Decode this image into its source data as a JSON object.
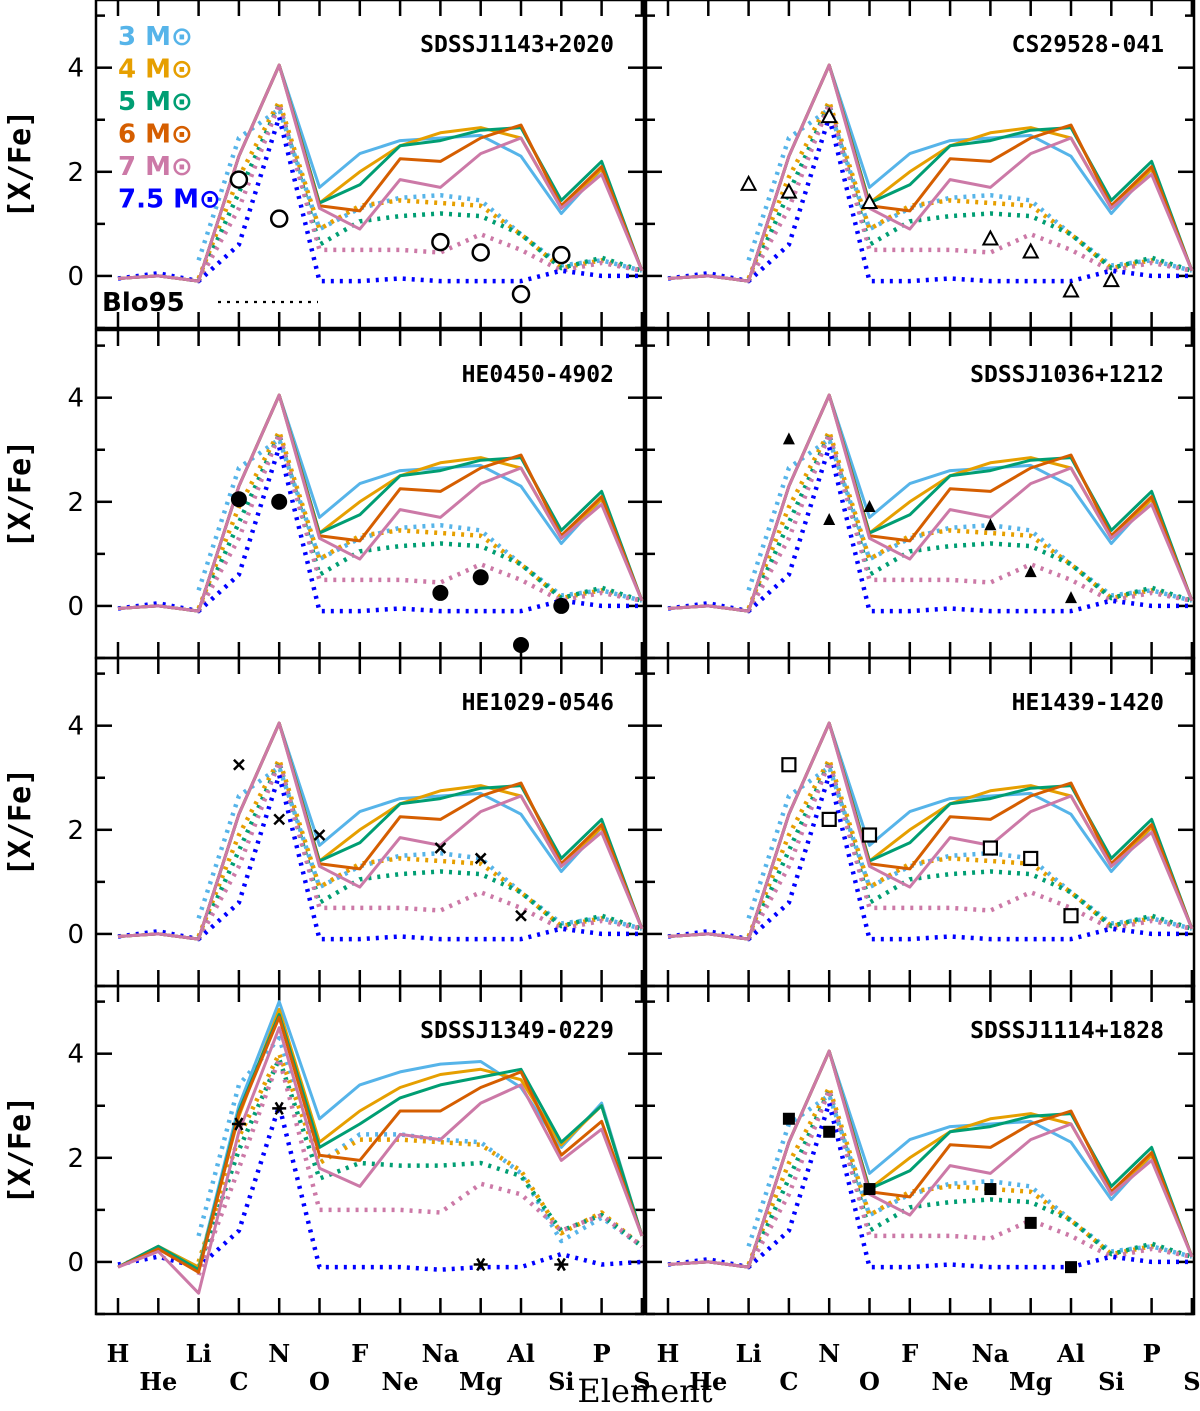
{
  "chart_data": {
    "type": "line",
    "xlabel": "Element",
    "ylabel": "[X/Fe]",
    "ylim": [
      -1.0,
      5.3
    ],
    "yticks": [
      "0",
      "2",
      "4"
    ],
    "elements": [
      "H",
      "He",
      "Li",
      "C",
      "N",
      "O",
      "F",
      "Ne",
      "Na",
      "Mg",
      "Al",
      "Si",
      "P",
      "S"
    ],
    "legend": {
      "entries": [
        {
          "label": "3 M⊙",
          "mass": "3",
          "color": "#56b4e9"
        },
        {
          "label": "4 M⊙",
          "mass": "4",
          "color": "#e69f00"
        },
        {
          "label": "5 M⊙",
          "mass": "5",
          "color": "#009e73"
        },
        {
          "label": "6 M⊙",
          "mass": "6",
          "color": "#d55e00"
        },
        {
          "label": "7 M⊙",
          "mass": "7",
          "color": "#cc79a7"
        },
        {
          "label": "7.5 M⊙",
          "mass": "7.5",
          "color": "#0000ff"
        }
      ],
      "dotted_label": "Blo95",
      "solid_style": "solid",
      "dotted_style": "dotted"
    },
    "models": {
      "standard": {
        "solid": [
          {
            "name": "3 M⊙",
            "values": [
              -0.05,
              0,
              -0.1,
              2.3,
              4.05,
              1.7,
              2.35,
              2.6,
              2.65,
              2.7,
              2.3,
              1.2,
              2.05,
              0.1
            ]
          },
          {
            "name": "4 M⊙",
            "values": [
              -0.05,
              0,
              -0.1,
              2.3,
              4.05,
              1.4,
              2.0,
              2.5,
              2.75,
              2.85,
              2.65,
              1.3,
              2.05,
              0.1
            ]
          },
          {
            "name": "5 M⊙",
            "values": [
              -0.05,
              0,
              -0.1,
              2.3,
              4.05,
              1.4,
              1.75,
              2.5,
              2.6,
              2.8,
              2.85,
              1.45,
              2.2,
              0.1
            ]
          },
          {
            "name": "6 M⊙",
            "values": [
              -0.05,
              0,
              -0.1,
              2.3,
              4.05,
              1.35,
              1.25,
              2.25,
              2.2,
              2.65,
              2.9,
              1.35,
              2.1,
              0.1
            ]
          },
          {
            "name": "7 M⊙",
            "values": [
              -0.05,
              0,
              -0.1,
              2.3,
              4.05,
              1.3,
              0.9,
              1.85,
              1.7,
              2.35,
              2.65,
              1.3,
              1.95,
              0.1
            ]
          }
        ],
        "dotted": [
          {
            "name": "3 M⊙",
            "values": [
              null,
              null,
              0.3,
              2.65,
              3.2,
              0.9,
              1.3,
              1.5,
              1.55,
              1.45,
              0.8,
              0.2,
              0.3,
              0.1
            ]
          },
          {
            "name": "4 M⊙",
            "values": [
              null,
              null,
              -0.05,
              1.9,
              3.35,
              0.9,
              1.35,
              1.45,
              1.4,
              1.35,
              0.8,
              0.15,
              0.3,
              0.1
            ]
          },
          {
            "name": "5 M⊙",
            "values": [
              null,
              null,
              -0.1,
              1.6,
              3.3,
              0.6,
              1.05,
              1.15,
              1.2,
              1.15,
              0.8,
              0.15,
              0.35,
              0.1
            ]
          },
          {
            "name": "7 M⊙",
            "values": [
              null,
              null,
              -0.1,
              1.3,
              3.3,
              0.5,
              0.5,
              0.5,
              0.45,
              0.8,
              0.5,
              0.1,
              0.25,
              0.1
            ]
          },
          {
            "name": "7.5 M⊙",
            "values": [
              -0.05,
              0.05,
              -0.1,
              0.6,
              3.05,
              -0.1,
              -0.1,
              -0.05,
              -0.1,
              -0.1,
              -0.1,
              0.1,
              0.0,
              0.0
            ]
          }
        ]
      },
      "high": {
        "solid": [
          {
            "name": "3 M⊙",
            "values": [
              -0.1,
              0.3,
              -0.1,
              3.0,
              5.0,
              2.75,
              3.4,
              3.65,
              3.8,
              3.85,
              3.35,
              2.2,
              3.05,
              0.5
            ]
          },
          {
            "name": "4 M⊙",
            "values": [
              -0.1,
              0.3,
              -0.1,
              2.8,
              4.85,
              2.3,
              2.9,
              3.35,
              3.6,
              3.7,
              3.5,
              2.25,
              3.0,
              0.5
            ]
          },
          {
            "name": "5 M⊙",
            "values": [
              -0.1,
              0.3,
              -0.15,
              2.9,
              4.75,
              2.2,
              2.65,
              3.15,
              3.4,
              3.55,
              3.7,
              2.3,
              3.0,
              0.5
            ]
          },
          {
            "name": "6 M⊙",
            "values": [
              -0.1,
              0.25,
              -0.2,
              2.85,
              4.7,
              2.05,
              1.95,
              2.9,
              2.9,
              3.35,
              3.65,
              2.05,
              2.7,
              0.5
            ]
          },
          {
            "name": "7 M⊙",
            "values": [
              -0.1,
              0.2,
              -0.6,
              2.5,
              4.5,
              1.8,
              1.45,
              2.45,
              2.35,
              3.05,
              3.4,
              1.95,
              2.55,
              0.5
            ]
          }
        ],
        "dotted": [
          {
            "name": "3 M⊙",
            "values": [
              null,
              null,
              0.5,
              3.4,
              4.3,
              1.9,
              2.45,
              2.45,
              2.35,
              2.3,
              1.7,
              0.4,
              0.85,
              0.3
            ]
          },
          {
            "name": "4 M⊙",
            "values": [
              null,
              null,
              0.0,
              2.4,
              4.0,
              1.9,
              2.35,
              2.35,
              2.3,
              2.25,
              1.75,
              0.55,
              0.95,
              0.3
            ]
          },
          {
            "name": "5 M⊙",
            "values": [
              null,
              null,
              -0.1,
              2.15,
              3.9,
              1.6,
              1.9,
              1.85,
              1.85,
              1.9,
              1.65,
              0.6,
              0.9,
              0.3
            ]
          },
          {
            "name": "7 M⊙",
            "values": [
              null,
              null,
              -0.25,
              1.8,
              3.9,
              1.0,
              1.0,
              1.0,
              0.95,
              1.5,
              1.3,
              0.6,
              0.9,
              0.3
            ]
          },
          {
            "name": "7.5 M⊙",
            "values": [
              -0.05,
              0.1,
              -0.1,
              0.6,
              3.0,
              -0.1,
              -0.1,
              -0.1,
              -0.15,
              -0.1,
              -0.1,
              0.15,
              -0.05,
              0.0
            ]
          }
        ]
      }
    },
    "panels": [
      {
        "id": "sdssj1143",
        "title": "SDSSJ1143+2020",
        "model": "standard",
        "marker": "open-circle",
        "show_legend": true,
        "observed": [
          {
            "element": "C",
            "value": 1.85
          },
          {
            "element": "N",
            "value": 1.1
          },
          {
            "element": "Na",
            "value": 0.65
          },
          {
            "element": "Mg",
            "value": 0.45
          },
          {
            "element": "Al",
            "value": -0.35
          },
          {
            "element": "Si",
            "value": 0.4
          }
        ]
      },
      {
        "id": "cs29528",
        "title": "CS29528-041",
        "model": "standard",
        "marker": "open-triangle",
        "show_legend": false,
        "observed": [
          {
            "element": "Li",
            "value": 1.75
          },
          {
            "element": "C",
            "value": 1.6
          },
          {
            "element": "N",
            "value": 3.05
          },
          {
            "element": "O",
            "value": 1.4
          },
          {
            "element": "Na",
            "value": 0.7
          },
          {
            "element": "Mg",
            "value": 0.45
          },
          {
            "element": "Al",
            "value": -0.3
          },
          {
            "element": "Si",
            "value": -0.1
          }
        ]
      },
      {
        "id": "he0450",
        "title": "HE0450-4902",
        "model": "standard",
        "marker": "filled-circle",
        "show_legend": false,
        "observed": [
          {
            "element": "C",
            "value": 2.05
          },
          {
            "element": "N",
            "value": 2.0
          },
          {
            "element": "Na",
            "value": 0.25
          },
          {
            "element": "Mg",
            "value": 0.55
          },
          {
            "element": "Al",
            "value": -0.75
          },
          {
            "element": "Si",
            "value": 0.0
          }
        ]
      },
      {
        "id": "sdssj1036",
        "title": "SDSSJ1036+1212",
        "model": "standard",
        "marker": "filled-triangle",
        "show_legend": false,
        "observed": [
          {
            "element": "C",
            "value": 3.2
          },
          {
            "element": "N",
            "value": 1.65
          },
          {
            "element": "O",
            "value": 1.9
          },
          {
            "element": "Na",
            "value": 1.55
          },
          {
            "element": "Mg",
            "value": 0.65
          },
          {
            "element": "Al",
            "value": 0.15
          }
        ]
      },
      {
        "id": "he1029",
        "title": "HE1029-0546",
        "model": "standard",
        "marker": "cross",
        "show_legend": false,
        "observed": [
          {
            "element": "C",
            "value": 3.25
          },
          {
            "element": "N",
            "value": 2.2
          },
          {
            "element": "O",
            "value": 1.9
          },
          {
            "element": "Na",
            "value": 1.65
          },
          {
            "element": "Mg",
            "value": 1.45
          },
          {
            "element": "Al",
            "value": 0.35
          }
        ]
      },
      {
        "id": "he1439",
        "title": "HE1439-1420",
        "model": "standard",
        "marker": "open-square",
        "show_legend": false,
        "observed": [
          {
            "element": "C",
            "value": 3.25
          },
          {
            "element": "N",
            "value": 2.2
          },
          {
            "element": "O",
            "value": 1.9
          },
          {
            "element": "Na",
            "value": 1.65
          },
          {
            "element": "Mg",
            "value": 1.45
          },
          {
            "element": "Al",
            "value": 0.35
          }
        ]
      },
      {
        "id": "sdssj1349",
        "title": "SDSSJ1349-0229",
        "model": "high",
        "marker": "asterisk",
        "show_legend": false,
        "observed": [
          {
            "element": "C",
            "value": 2.65
          },
          {
            "element": "N",
            "value": 2.95
          },
          {
            "element": "Mg",
            "value": -0.05
          },
          {
            "element": "Si",
            "value": -0.05
          }
        ]
      },
      {
        "id": "sdssj1114",
        "title": "SDSSJ1114+1828",
        "model": "standard",
        "marker": "filled-square",
        "show_legend": false,
        "observed": [
          {
            "element": "C",
            "value": 2.75
          },
          {
            "element": "N",
            "value": 2.5
          },
          {
            "element": "O",
            "value": 1.4
          },
          {
            "element": "Na",
            "value": 1.4
          },
          {
            "element": "Mg",
            "value": 0.75
          },
          {
            "element": "Al",
            "value": -0.1
          }
        ]
      }
    ]
  }
}
